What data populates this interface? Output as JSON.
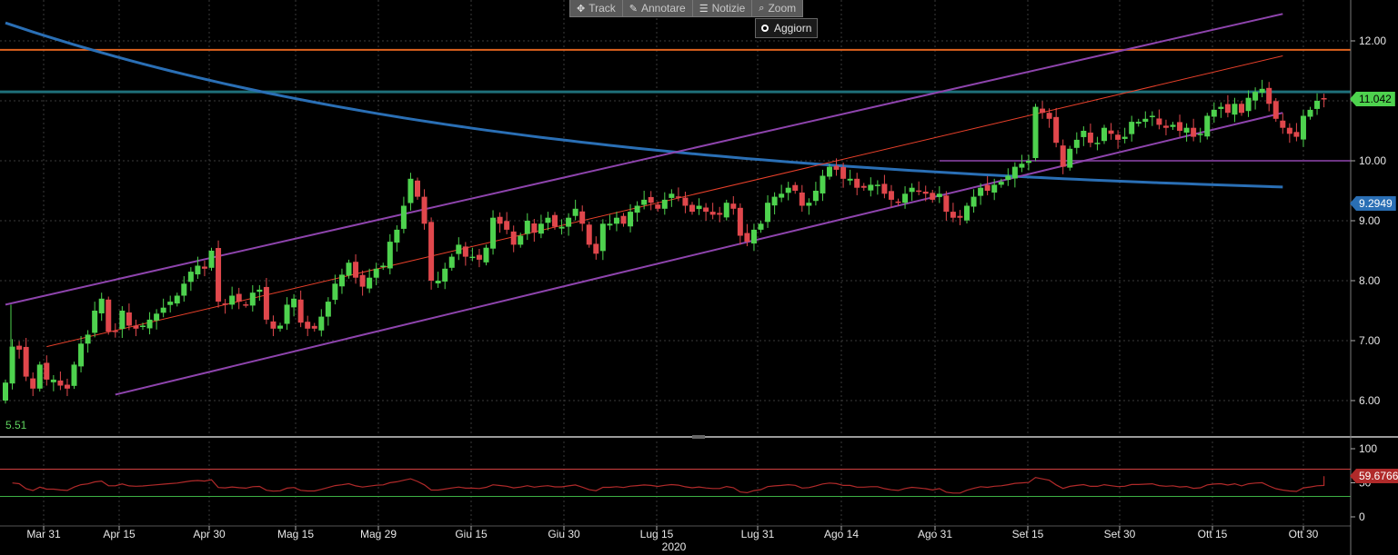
{
  "toolbar": {
    "track": "Track",
    "annotate": "Annotare",
    "news": "Notizie",
    "zoom": "Zoom",
    "refresh": "Aggiorn"
  },
  "labels": {
    "low_value": "5.51",
    "last_price": "11.042",
    "ma_value": "9.2949",
    "rsi_value": "59.6766",
    "year": "2020"
  },
  "colors": {
    "up": "#4ed24e",
    "down": "#e0474c",
    "channel": "#8e44ad",
    "midline": "#e8402a",
    "hline_orange": "#e0631e",
    "hline_teal": "#1f6f7a",
    "hline_purple": "#6c3483",
    "ma": "#2a6fb5",
    "rsi": "#b02a2a",
    "rsi_upper": "#d04040",
    "rsi_lower": "#3cb043"
  },
  "chart_data": [
    {
      "type": "candlestick",
      "x_ticks": [
        "Mar 31",
        "Apr 15",
        "Apr 30",
        "Mag 15",
        "Mag 29",
        "Giu 15",
        "Giu 30",
        "Lug 15",
        "Lug 31",
        "Ago 14",
        "Ago 31",
        "Set 15",
        "Set 30",
        "Ott 15",
        "Ott 30"
      ],
      "y_ticks": [
        "12.00",
        "11.00",
        "10.00",
        "9.00",
        "8.00",
        "7.00",
        "6.00"
      ],
      "ylim": [
        5.5,
        12.6
      ],
      "date_range": [
        "2020-03-24",
        "2020-11-06"
      ],
      "close": [
        6.3,
        6.9,
        6.85,
        6.4,
        6.2,
        6.6,
        6.35,
        6.35,
        6.25,
        6.2,
        6.6,
        6.95,
        7.1,
        7.5,
        7.7,
        7.15,
        7.15,
        7.5,
        7.25,
        7.2,
        7.25,
        7.35,
        7.45,
        7.55,
        7.65,
        7.75,
        7.95,
        8.15,
        8.25,
        8.2,
        8.5,
        7.65,
        7.6,
        7.75,
        7.65,
        7.6,
        7.8,
        7.85,
        7.35,
        7.2,
        7.25,
        7.6,
        7.7,
        7.3,
        7.2,
        7.2,
        7.4,
        7.65,
        7.95,
        8.1,
        8.3,
        8.05,
        7.9,
        8.05,
        8.2,
        8.25,
        8.65,
        8.85,
        9.25,
        9.7,
        9.4,
        8.95,
        8.0,
        8.0,
        8.2,
        8.4,
        8.6,
        8.4,
        8.4,
        8.35,
        8.55,
        9.05,
        8.95,
        8.85,
        8.6,
        8.75,
        9.0,
        8.8,
        8.95,
        9.05,
        8.9,
        8.9,
        9.05,
        9.2,
        8.95,
        8.6,
        8.45,
        8.95,
        8.95,
        9.05,
        8.95,
        9.15,
        9.25,
        9.35,
        9.3,
        9.2,
        9.35,
        9.45,
        9.4,
        9.25,
        9.15,
        9.25,
        9.15,
        9.1,
        9.1,
        9.3,
        9.2,
        8.75,
        8.65,
        8.85,
        8.95,
        9.3,
        9.4,
        9.45,
        9.55,
        9.5,
        9.25,
        9.3,
        9.5,
        9.75,
        9.9,
        9.85,
        9.7,
        9.7,
        9.55,
        9.55,
        9.6,
        9.6,
        9.45,
        9.35,
        9.3,
        9.45,
        9.55,
        9.5,
        9.45,
        9.35,
        9.45,
        9.15,
        9.05,
        9.05,
        9.25,
        9.4,
        9.55,
        9.5,
        9.6,
        9.65,
        9.75,
        9.9,
        9.95,
        10.0,
        10.9,
        10.8,
        10.7,
        10.3,
        9.9,
        10.2,
        10.35,
        10.5,
        10.3,
        10.3,
        10.55,
        10.45,
        10.35,
        10.4,
        10.65,
        10.65,
        10.7,
        10.75,
        10.6,
        10.55,
        10.6,
        10.5,
        10.55,
        10.4,
        10.45,
        10.75,
        10.85,
        10.9,
        10.8,
        10.95,
        10.8,
        11.05,
        11.15,
        11.2,
        10.95,
        10.7,
        10.55,
        10.45,
        10.4,
        10.75,
        10.85,
        11.0,
        11.042
      ],
      "channel_upper": [
        [
          0,
          7.6
        ],
        [
          186,
          12.45
        ]
      ],
      "channel_mid": [
        [
          6,
          6.9
        ],
        [
          186,
          11.75
        ]
      ],
      "channel_lower": [
        [
          16,
          6.1
        ],
        [
          186,
          10.8
        ]
      ],
      "hlines": [
        11.85,
        11.15
      ],
      "hline_segment": {
        "from": 136,
        "value": 10.0
      },
      "ma_value": 9.2949
    },
    {
      "type": "line",
      "y_ticks": [
        "100",
        "50",
        "0"
      ],
      "ylim": [
        -5,
        105
      ],
      "upper_band": 70,
      "lower_band": 30,
      "value": 59.6766
    }
  ]
}
